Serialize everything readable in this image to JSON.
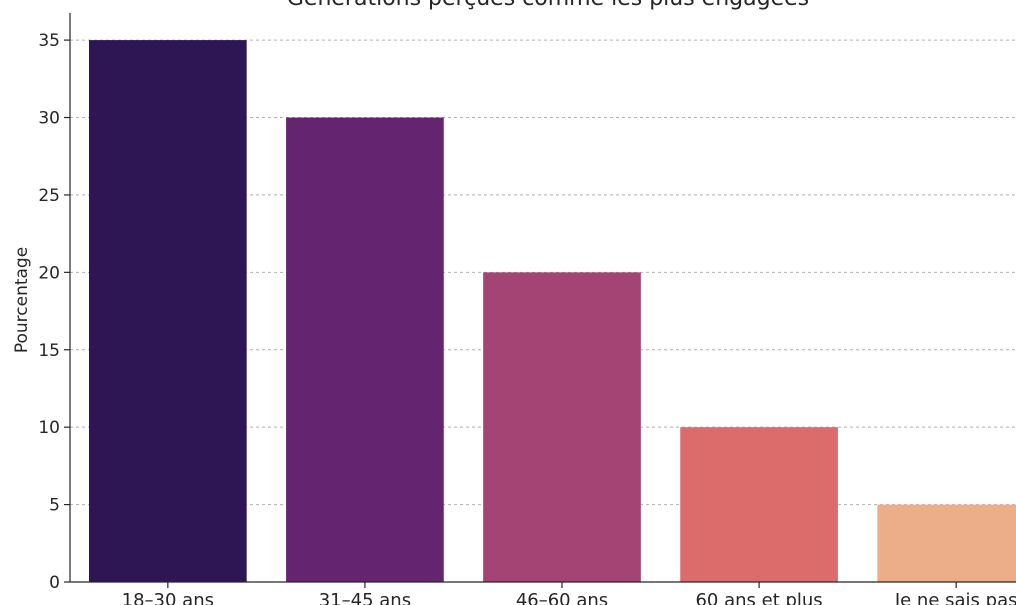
{
  "chart_data": {
    "type": "bar",
    "title": "Générations perçues comme les plus engagées",
    "xlabel": "",
    "ylabel": "Pourcentage",
    "categories": [
      "18–30 ans",
      "31–45 ans",
      "46–60 ans",
      "60 ans et plus",
      "Je ne sais pas"
    ],
    "values": [
      35,
      30,
      20,
      10,
      5
    ],
    "colors": [
      "#2d1653",
      "#65246f",
      "#a34474",
      "#dc6b6b",
      "#ecae89"
    ],
    "ylim": [
      0,
      36.75
    ],
    "yticks": [
      0,
      5,
      10,
      15,
      20,
      25,
      30,
      35
    ],
    "grid": "y-dashed",
    "legend": "none"
  }
}
